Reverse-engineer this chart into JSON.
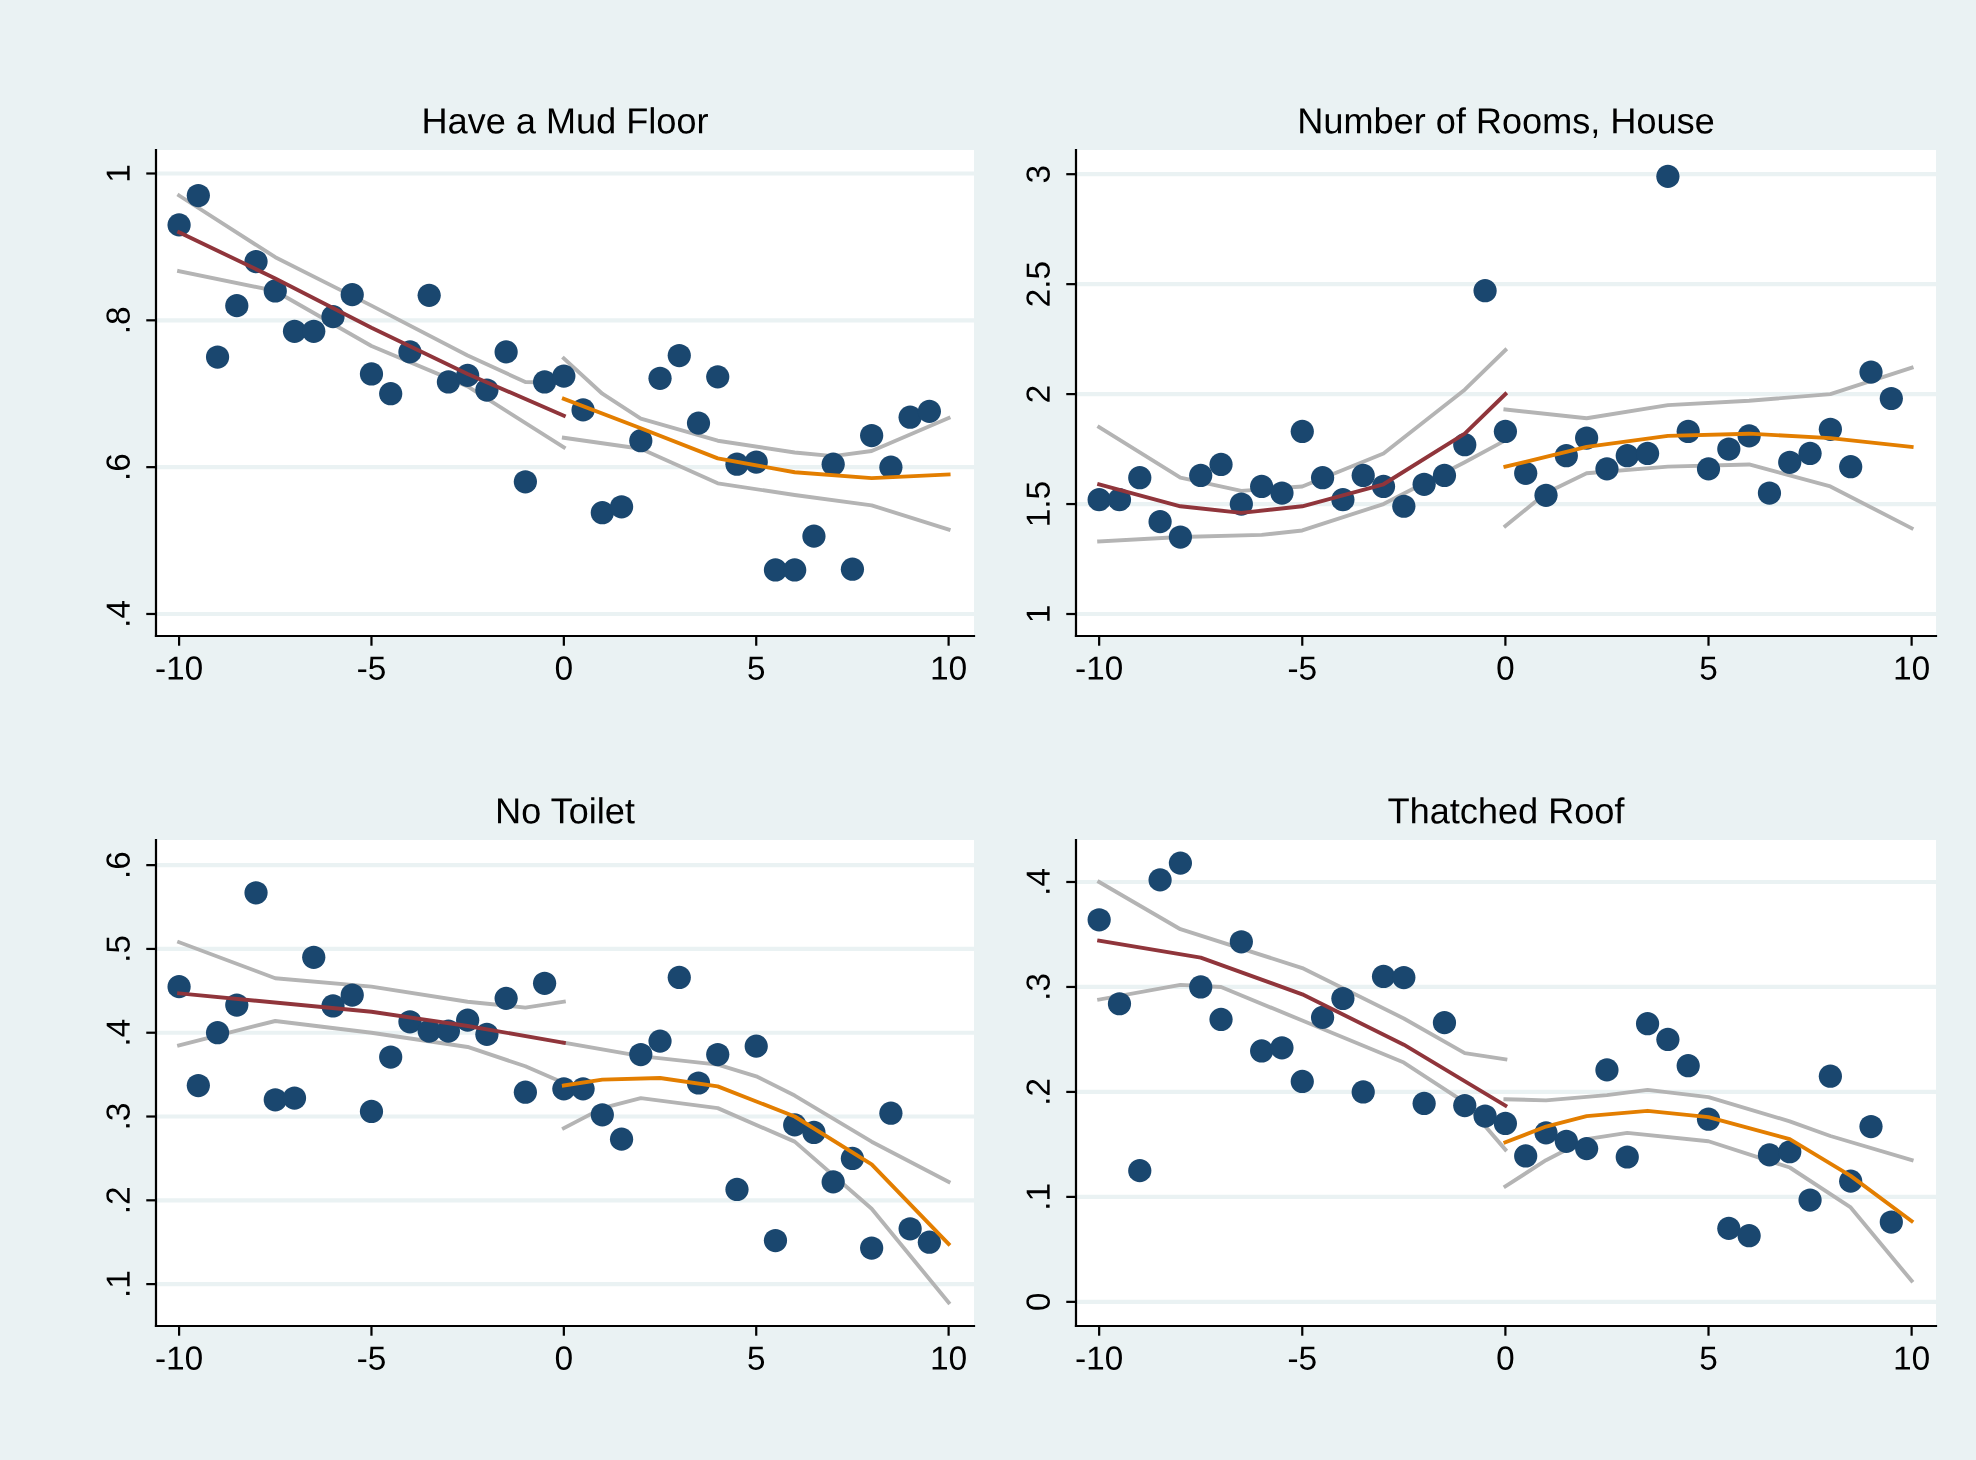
{
  "chart_data": [
    {
      "type": "scatter",
      "title": "Have a Mud Floor",
      "xlim": [
        -10.6,
        10.66
      ],
      "ylim": [
        0.37,
        1.032
      ],
      "xticks": [
        -10,
        -5,
        0,
        5,
        10
      ],
      "yticks": [
        {
          "value": 0.4,
          "label": ".4"
        },
        {
          "value": 0.6,
          "label": ".6"
        },
        {
          "value": 0.8,
          "label": ".8"
        },
        {
          "value": 1,
          "label": "1"
        }
      ],
      "grid": "y",
      "series": [
        {
          "marker": "circle",
          "color": "#1a476f",
          "x": [
            -10,
            -9.5,
            -9,
            -8.5,
            -8,
            -7.5,
            -7,
            -6.5,
            -6,
            -5.5,
            -5,
            -4.5,
            -4,
            -3.5,
            -3,
            -2.5,
            -2,
            -1.5,
            -1,
            -0.5,
            0,
            0.5,
            1,
            1.5,
            2,
            2.5,
            3,
            3.5,
            4,
            4.5,
            5,
            5.5,
            6,
            6.5,
            7,
            7.5,
            8,
            8.5,
            9,
            9.5
          ],
          "values": [
            0.93,
            0.97,
            0.75,
            0.82,
            0.88,
            0.84,
            0.785,
            0.785,
            0.805,
            0.835,
            0.727,
            0.7,
            0.757,
            0.834,
            0.716,
            0.725,
            0.705,
            0.757,
            0.58,
            0.716,
            0.724,
            0.678,
            0.538,
            0.546,
            0.636,
            0.721,
            0.752,
            0.66,
            0.723,
            0.604,
            0.607,
            0.46,
            0.46,
            0.506,
            0.604,
            0.461,
            0.643,
            0.6,
            0.668,
            0.676
          ]
        },
        {
          "type": "line",
          "color": "#b4b4b4",
          "x": [
            -10,
            -7.5,
            -5,
            -2.5,
            -1,
            0
          ],
          "values": [
            0.97,
            0.886,
            0.82,
            0.752,
            0.716,
            0.715
          ]
        },
        {
          "type": "line",
          "color": "#b4b4b4",
          "x": [
            -10,
            -7.5,
            -5,
            -2.5,
            0
          ],
          "values": [
            0.867,
            0.84,
            0.765,
            0.71,
            0.627
          ]
        },
        {
          "type": "line",
          "color": "#b4b4b4",
          "x": [
            0,
            1,
            2,
            4,
            6,
            7,
            8,
            10
          ],
          "values": [
            0.748,
            0.7,
            0.666,
            0.636,
            0.62,
            0.615,
            0.622,
            0.667
          ]
        },
        {
          "type": "line",
          "color": "#b4b4b4",
          "x": [
            0,
            2,
            4,
            6,
            8,
            10
          ],
          "values": [
            0.64,
            0.625,
            0.578,
            0.562,
            0.548,
            0.515
          ]
        },
        {
          "type": "line",
          "color": "#90353b",
          "x": [
            -10,
            -7.5,
            -5,
            -2.5,
            0
          ],
          "values": [
            0.92,
            0.857,
            0.79,
            0.727,
            0.67
          ]
        },
        {
          "type": "line",
          "color": "#e37e00",
          "x": [
            0,
            2,
            4,
            6,
            8,
            10
          ],
          "values": [
            0.693,
            0.653,
            0.612,
            0.593,
            0.585,
            0.59
          ]
        }
      ]
    },
    {
      "type": "scatter",
      "title": "Number of Rooms, House",
      "xlim": [
        -10.57,
        10.6
      ],
      "ylim": [
        0.9,
        3.11
      ],
      "xticks": [
        -10,
        -5,
        0,
        5,
        10
      ],
      "yticks": [
        1,
        1.5,
        2,
        2.5,
        3
      ],
      "grid": "y",
      "series": [
        {
          "marker": "circle",
          "color": "#1a476f",
          "x": [
            -10,
            -9.5,
            -9,
            -8.5,
            -8,
            -7.5,
            -7,
            -6.5,
            -6,
            -5.5,
            -5,
            -4.5,
            -4,
            -3.5,
            -3,
            -2.5,
            -2,
            -1.5,
            -1,
            -0.5,
            0,
            0.5,
            1,
            1.5,
            2,
            2.5,
            3,
            3.5,
            4,
            4.5,
            5,
            5.5,
            6,
            6.5,
            7,
            7.5,
            8,
            8.5,
            9,
            9.5
          ],
          "values": [
            1.52,
            1.52,
            1.62,
            1.42,
            1.35,
            1.63,
            1.68,
            1.5,
            1.58,
            1.55,
            1.83,
            1.62,
            1.52,
            1.63,
            1.58,
            1.49,
            1.59,
            1.63,
            1.77,
            2.47,
            1.83,
            1.64,
            1.54,
            1.72,
            1.8,
            1.66,
            1.72,
            1.73,
            2.99,
            1.83,
            1.66,
            1.75,
            1.81,
            1.55,
            1.69,
            1.73,
            1.84,
            1.67,
            2.1,
            1.98
          ]
        },
        {
          "type": "line",
          "color": "#b4b4b4",
          "x": [
            -10,
            -8,
            -6.5,
            -5,
            -3,
            -1,
            0
          ],
          "values": [
            1.85,
            1.62,
            1.56,
            1.58,
            1.73,
            2.02,
            2.2
          ]
        },
        {
          "type": "line",
          "color": "#b4b4b4",
          "x": [
            -10,
            -8,
            -6,
            -5,
            -3,
            -1,
            0
          ],
          "values": [
            1.33,
            1.35,
            1.36,
            1.38,
            1.5,
            1.69,
            1.79
          ]
        },
        {
          "type": "line",
          "color": "#b4b4b4",
          "x": [
            0,
            2,
            4,
            6,
            8,
            10
          ],
          "values": [
            1.93,
            1.89,
            1.95,
            1.97,
            2.0,
            2.12
          ]
        },
        {
          "type": "line",
          "color": "#b4b4b4",
          "x": [
            0,
            1,
            2,
            4,
            6,
            8,
            10
          ],
          "values": [
            1.4,
            1.55,
            1.64,
            1.67,
            1.68,
            1.58,
            1.39
          ]
        },
        {
          "type": "line",
          "color": "#90353b",
          "x": [
            -10,
            -8,
            -6.5,
            -5,
            -3,
            -1,
            0
          ],
          "values": [
            1.59,
            1.49,
            1.46,
            1.49,
            1.59,
            1.82,
            2.0
          ]
        },
        {
          "type": "line",
          "color": "#e37e00",
          "x": [
            0,
            2,
            4,
            6,
            8,
            10
          ],
          "values": [
            1.67,
            1.76,
            1.81,
            1.82,
            1.8,
            1.76
          ]
        }
      ]
    },
    {
      "type": "scatter",
      "title": "No Toilet",
      "xlim": [
        -10.6,
        10.66
      ],
      "ylim": [
        0.05,
        0.63
      ],
      "xticks": [
        -10,
        -5,
        0,
        5,
        10
      ],
      "yticks": [
        {
          "value": 0.1,
          "label": ".1"
        },
        {
          "value": 0.2,
          "label": ".2"
        },
        {
          "value": 0.3,
          "label": ".3"
        },
        {
          "value": 0.4,
          "label": ".4"
        },
        {
          "value": 0.5,
          "label": ".5"
        },
        {
          "value": 0.6,
          "label": ".6"
        }
      ],
      "grid": "y",
      "series": [
        {
          "marker": "circle",
          "color": "#1a476f",
          "x": [
            -10,
            -9.5,
            -9,
            -8.5,
            -8,
            -7.5,
            -7,
            -6.5,
            -6,
            -5.5,
            -5,
            -4.5,
            -4,
            -3.5,
            -3,
            -2.5,
            -2,
            -1.5,
            -1,
            -0.5,
            0,
            0.5,
            1,
            1.5,
            2,
            2.5,
            3,
            3.5,
            4,
            4.5,
            5,
            5.5,
            6,
            6.5,
            7,
            7.5,
            8,
            8.5,
            9,
            9.5
          ],
          "values": [
            0.455,
            0.337,
            0.4,
            0.433,
            0.567,
            0.32,
            0.322,
            0.49,
            0.432,
            0.445,
            0.306,
            0.371,
            0.413,
            0.402,
            0.402,
            0.415,
            0.398,
            0.441,
            0.329,
            0.459,
            0.333,
            0.333,
            0.302,
            0.273,
            0.374,
            0.39,
            0.466,
            0.34,
            0.374,
            0.213,
            0.384,
            0.152,
            0.29,
            0.281,
            0.222,
            0.25,
            0.143,
            0.304,
            0.166,
            0.15
          ]
        },
        {
          "type": "line",
          "color": "#b4b4b4",
          "x": [
            -10,
            -7.5,
            -5,
            -2.5,
            -1,
            0
          ],
          "values": [
            0.508,
            0.465,
            0.455,
            0.437,
            0.43,
            0.437
          ]
        },
        {
          "type": "line",
          "color": "#b4b4b4",
          "x": [
            -10,
            -7.5,
            -5,
            -2.5,
            -1,
            0
          ],
          "values": [
            0.385,
            0.414,
            0.4,
            0.383,
            0.36,
            0.34
          ]
        },
        {
          "type": "line",
          "color": "#b4b4b4",
          "x": [
            0,
            2,
            4,
            5,
            6,
            8,
            10
          ],
          "values": [
            0.388,
            0.372,
            0.362,
            0.348,
            0.325,
            0.27,
            0.222
          ]
        },
        {
          "type": "line",
          "color": "#b4b4b4",
          "x": [
            0,
            1,
            2,
            4,
            6,
            8,
            10
          ],
          "values": [
            0.286,
            0.31,
            0.322,
            0.31,
            0.27,
            0.19,
            0.078
          ]
        },
        {
          "type": "line",
          "color": "#90353b",
          "x": [
            -10,
            -5,
            -2.5,
            0
          ],
          "values": [
            0.447,
            0.425,
            0.408,
            0.388
          ]
        },
        {
          "type": "line",
          "color": "#e37e00",
          "x": [
            0,
            1,
            2.5,
            4,
            6,
            8,
            10
          ],
          "values": [
            0.337,
            0.344,
            0.346,
            0.336,
            0.3,
            0.243,
            0.148
          ]
        }
      ]
    },
    {
      "type": "scatter",
      "title": "Thatched Roof",
      "xlim": [
        -10.57,
        10.6
      ],
      "ylim": [
        -0.023,
        0.44
      ],
      "xticks": [
        -10,
        -5,
        0,
        5,
        10
      ],
      "yticks": [
        0,
        {
          "value": 0.1,
          "label": ".1"
        },
        {
          "value": 0.2,
          "label": ".2"
        },
        {
          "value": 0.3,
          "label": ".3"
        },
        {
          "value": 0.4,
          "label": ".4"
        }
      ],
      "grid": "y",
      "series": [
        {
          "marker": "circle",
          "color": "#1a476f",
          "x": [
            -10,
            -9.5,
            -9,
            -8.5,
            -8,
            -7.5,
            -7,
            -6.5,
            -6,
            -5.5,
            -5,
            -4.5,
            -4,
            -3.5,
            -3,
            -2.5,
            -2,
            -1.5,
            -1,
            -0.5,
            0,
            0.5,
            1,
            1.5,
            2,
            2.5,
            3,
            3.5,
            4,
            4.5,
            5,
            5.5,
            6,
            6.5,
            7,
            7.5,
            8,
            8.5,
            9,
            9.5
          ],
          "values": [
            0.364,
            0.284,
            0.125,
            0.402,
            0.418,
            0.3,
            0.269,
            0.343,
            0.239,
            0.242,
            0.21,
            0.271,
            0.289,
            0.2,
            0.31,
            0.309,
            0.189,
            0.266,
            0.187,
            0.177,
            0.17,
            0.139,
            0.161,
            0.153,
            0.146,
            0.221,
            0.138,
            0.265,
            0.25,
            0.225,
            0.174,
            0.07,
            0.063,
            0.14,
            0.143,
            0.097,
            0.215,
            0.115,
            0.167,
            0.076
          ]
        },
        {
          "type": "line",
          "color": "#b4b4b4",
          "x": [
            -10,
            -8,
            -5,
            -2.5,
            -1,
            0
          ],
          "values": [
            0.4,
            0.355,
            0.318,
            0.27,
            0.237,
            0.231
          ]
        },
        {
          "type": "line",
          "color": "#b4b4b4",
          "x": [
            -10,
            -8,
            -7,
            -5,
            -2.5,
            -1,
            0
          ],
          "values": [
            0.288,
            0.302,
            0.3,
            0.268,
            0.228,
            0.19,
            0.145
          ]
        },
        {
          "type": "line",
          "color": "#b4b4b4",
          "x": [
            0,
            1,
            2.5,
            3.5,
            5,
            7,
            8,
            10
          ],
          "values": [
            0.193,
            0.192,
            0.197,
            0.202,
            0.195,
            0.172,
            0.158,
            0.135
          ]
        },
        {
          "type": "line",
          "color": "#b4b4b4",
          "x": [
            0,
            1,
            2,
            3,
            5,
            7,
            8.5,
            10
          ],
          "values": [
            0.11,
            0.135,
            0.155,
            0.161,
            0.153,
            0.128,
            0.09,
            0.02
          ]
        },
        {
          "type": "line",
          "color": "#90353b",
          "x": [
            -10,
            -7.5,
            -5,
            -2.5,
            0
          ],
          "values": [
            0.344,
            0.328,
            0.293,
            0.245,
            0.187
          ]
        },
        {
          "type": "line",
          "color": "#e37e00",
          "x": [
            0,
            1,
            2,
            3.5,
            5,
            7,
            8.5,
            10
          ],
          "values": [
            0.152,
            0.167,
            0.177,
            0.182,
            0.176,
            0.155,
            0.12,
            0.077
          ]
        }
      ]
    }
  ]
}
